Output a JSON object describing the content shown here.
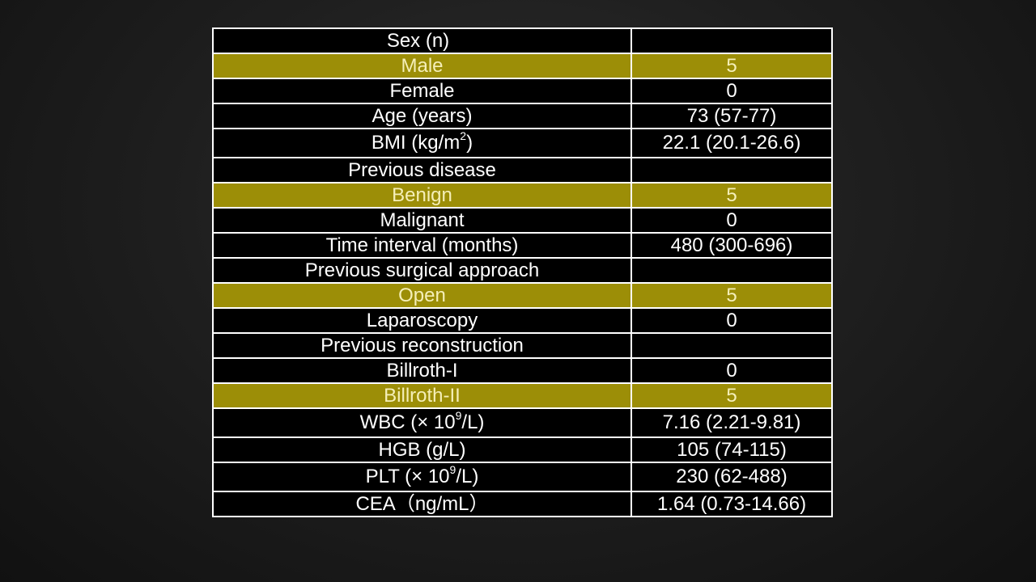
{
  "table": {
    "sex": {
      "label": "Sex (n)",
      "value": ""
    },
    "male": {
      "label": "Male",
      "value": "5"
    },
    "female": {
      "label": "Female",
      "value": "0"
    },
    "age": {
      "label": "Age (years)",
      "value": "73 (57-77)"
    },
    "bmi": {
      "label_prefix": "BMI (kg/m",
      "label_sup": "2",
      "label_suffix": ")",
      "value": "22.1 (20.1-26.6)"
    },
    "previous_disease": {
      "label": "Previous disease",
      "value": ""
    },
    "benign": {
      "label": "Benign",
      "value": "5"
    },
    "malignant": {
      "label": "Malignant",
      "value": "0"
    },
    "time_interval": {
      "label": "Time interval (months)",
      "value": "480 (300-696)"
    },
    "previous_surgical_approach": {
      "label": "Previous surgical approach",
      "value": ""
    },
    "open": {
      "label": "Open",
      "value": "5"
    },
    "laparoscopy": {
      "label": "Laparoscopy",
      "value": "0"
    },
    "previous_reconstruction": {
      "label": "Previous reconstruction",
      "value": ""
    },
    "billroth_1": {
      "label": "Billroth-I",
      "value": "0"
    },
    "billroth_2": {
      "label": "Billroth-II",
      "value": "5"
    },
    "wbc": {
      "label_prefix": "WBC (× 10",
      "label_sup": "9",
      "label_suffix": "/L)",
      "value": "7.16 (2.21-9.81)"
    },
    "hgb": {
      "label": "HGB (g/L)",
      "value": "105 (74-115)"
    },
    "plt": {
      "label_prefix": "PLT (× 10",
      "label_sup": "9",
      "label_suffix": "/L)",
      "value": "230 (62-488)"
    },
    "cea": {
      "label": "CEA（ng/mL）",
      "value": "1.64 (0.73-14.66)"
    }
  },
  "colors": {
    "background": "#1f1f1f",
    "cell_background": "#000000",
    "highlight_background": "#9c8e07",
    "highlight_text": "#f5efb8",
    "text": "#ffffff",
    "border": "#ffffff"
  }
}
